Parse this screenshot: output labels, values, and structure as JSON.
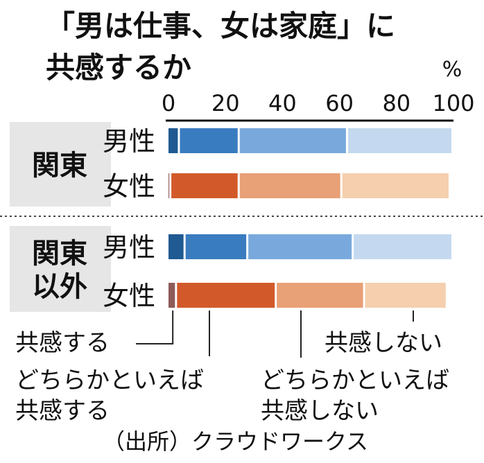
{
  "chart_data": {
    "type": "bar",
    "orientation": "horizontal",
    "stacked": true,
    "title": [
      "「男は仕事、女は家庭」に",
      "共感するか"
    ],
    "unit_label": "%",
    "xlim": [
      0,
      100
    ],
    "ticks": [
      "0",
      "20",
      "40",
      "60",
      "80",
      "100"
    ],
    "groups": [
      {
        "label": [
          "関東"
        ],
        "rows": [
          {
            "label": "男性",
            "scheme": "blue",
            "values": [
              4,
              21,
              38,
              37
            ]
          },
          {
            "label": "女性",
            "scheme": "orange",
            "values": [
              1,
              24,
              36,
              38
            ]
          }
        ]
      },
      {
        "label": [
          "関東",
          "以外"
        ],
        "rows": [
          {
            "label": "男性",
            "scheme": "blue",
            "values": [
              6,
              22,
              37,
              35
            ]
          },
          {
            "label": "女性",
            "scheme": "orange",
            "values": [
              3,
              35,
              31,
              29
            ]
          }
        ]
      }
    ],
    "segments": [
      "共感する",
      "どちらかといえば共感する",
      "どちらかといえば共感しない",
      "共感しない"
    ],
    "legend_labels": [
      [
        "共感する"
      ],
      [
        "どちらかといえば",
        "共感する"
      ],
      [
        "どちらかといえば",
        "共感しない"
      ],
      [
        "共感しない"
      ]
    ],
    "colors": {
      "blue": [
        "#1f5a92",
        "#3a7cc0",
        "#79a9dc",
        "#c4d9ef"
      ],
      "orange": [
        "#8e5c58",
        "#d25a2a",
        "#e8a077",
        "#f5cfae"
      ],
      "group_bg": "#e6e6e6"
    },
    "source": "（出所）クラウドワークス"
  }
}
